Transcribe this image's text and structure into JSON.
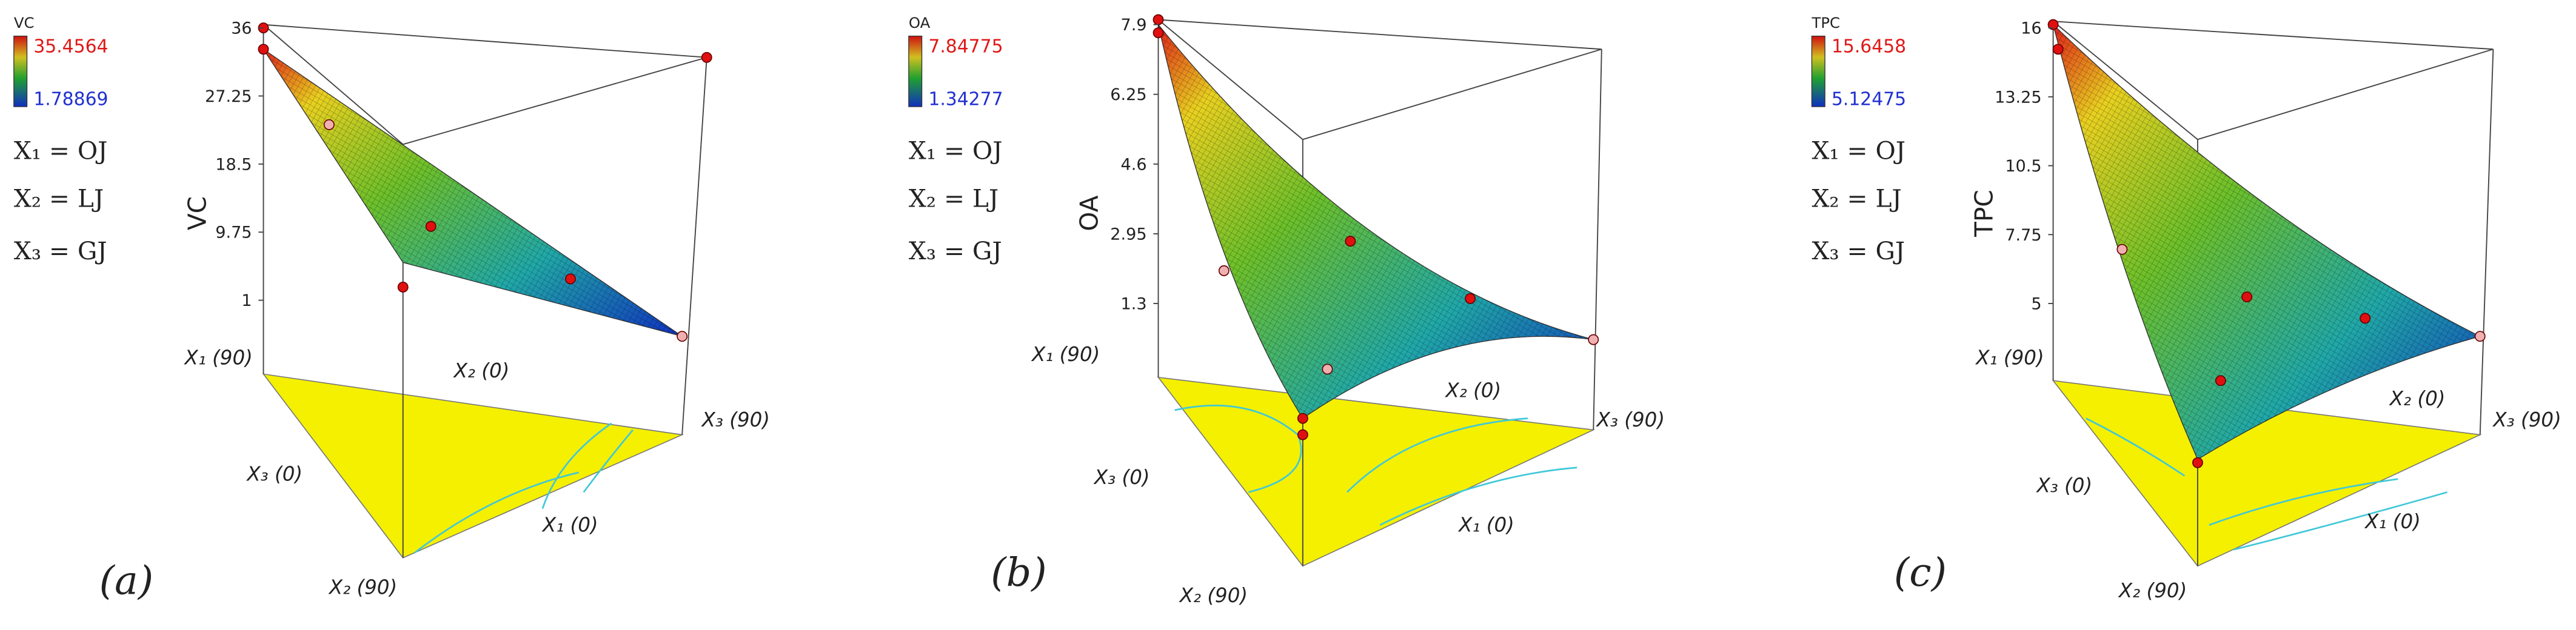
{
  "panels": [
    {
      "letter": "(a)",
      "legend": {
        "title": "VC",
        "max": "35.4564",
        "min": "1.78869"
      },
      "definitions": [
        "X₁ = OJ",
        "X₂ = LJ",
        "X₃ = GJ"
      ],
      "z_label": "VC",
      "z_ticks": [
        "36",
        "27.25",
        "18.5",
        "9.75",
        "1"
      ],
      "corner_labels": [
        "X₁ (90)",
        "X₂ (0)",
        "X₃ (90)",
        "X₃ (0)",
        "X₁ (0)",
        "X₂ (90)"
      ]
    },
    {
      "letter": "(b)",
      "legend": {
        "title": "OA",
        "max": "7.84775",
        "min": "1.34277"
      },
      "definitions": [
        "X₁ = OJ",
        "X₂ = LJ",
        "X₃ = GJ"
      ],
      "z_label": "OA",
      "z_ticks": [
        "7.9",
        "6.25",
        "4.6",
        "2.95",
        "1.3"
      ],
      "corner_labels": [
        "X₁ (90)",
        "X₂ (0)",
        "X₃ (90)",
        "X₃ (0)",
        "X₁ (0)",
        "X₂ (90)"
      ]
    },
    {
      "letter": "(c)",
      "legend": {
        "title": "TPC",
        "max": "15.6458",
        "min": "5.12475"
      },
      "definitions": [
        "X₁ = OJ",
        "X₂ = LJ",
        "X₃ = GJ"
      ],
      "z_label": "TPC",
      "z_ticks": [
        "16",
        "13.25",
        "10.5",
        "7.75",
        "5"
      ],
      "corner_labels": [
        "X₁ (90)",
        "X₂ (0)",
        "X₃ (90)",
        "X₃ (0)",
        "X₁ (0)",
        "X₂ (90)"
      ]
    }
  ]
}
